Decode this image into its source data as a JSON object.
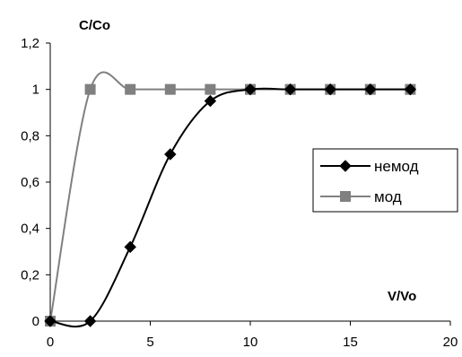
{
  "chart_data": {
    "type": "line",
    "ylabel": "C/Co",
    "xlabel": "V/Vo",
    "xlim": [
      0,
      20
    ],
    "ylim": [
      0,
      1.2
    ],
    "x_ticks": [
      "0",
      "5",
      "10",
      "15",
      "20"
    ],
    "y_ticks": [
      "0",
      "0,2",
      "0,4",
      "0,6",
      "0,8",
      "1",
      "1,2"
    ],
    "grid": false,
    "legend_position": "right",
    "smoothed": true,
    "series": [
      {
        "name": "немод",
        "color": "#000000",
        "marker": "diamond",
        "x": [
          0,
          2,
          4,
          6,
          8,
          10,
          12,
          14,
          16,
          18
        ],
        "y": [
          0,
          0,
          0.32,
          0.72,
          0.95,
          1,
          1,
          1,
          1,
          1
        ]
      },
      {
        "name": "мод",
        "color": "#808080",
        "marker": "square",
        "x": [
          0,
          2,
          4,
          6,
          8,
          10,
          12,
          14,
          16,
          18
        ],
        "y": [
          0,
          1,
          1,
          1,
          1,
          1,
          1,
          1,
          1,
          1
        ]
      }
    ]
  }
}
